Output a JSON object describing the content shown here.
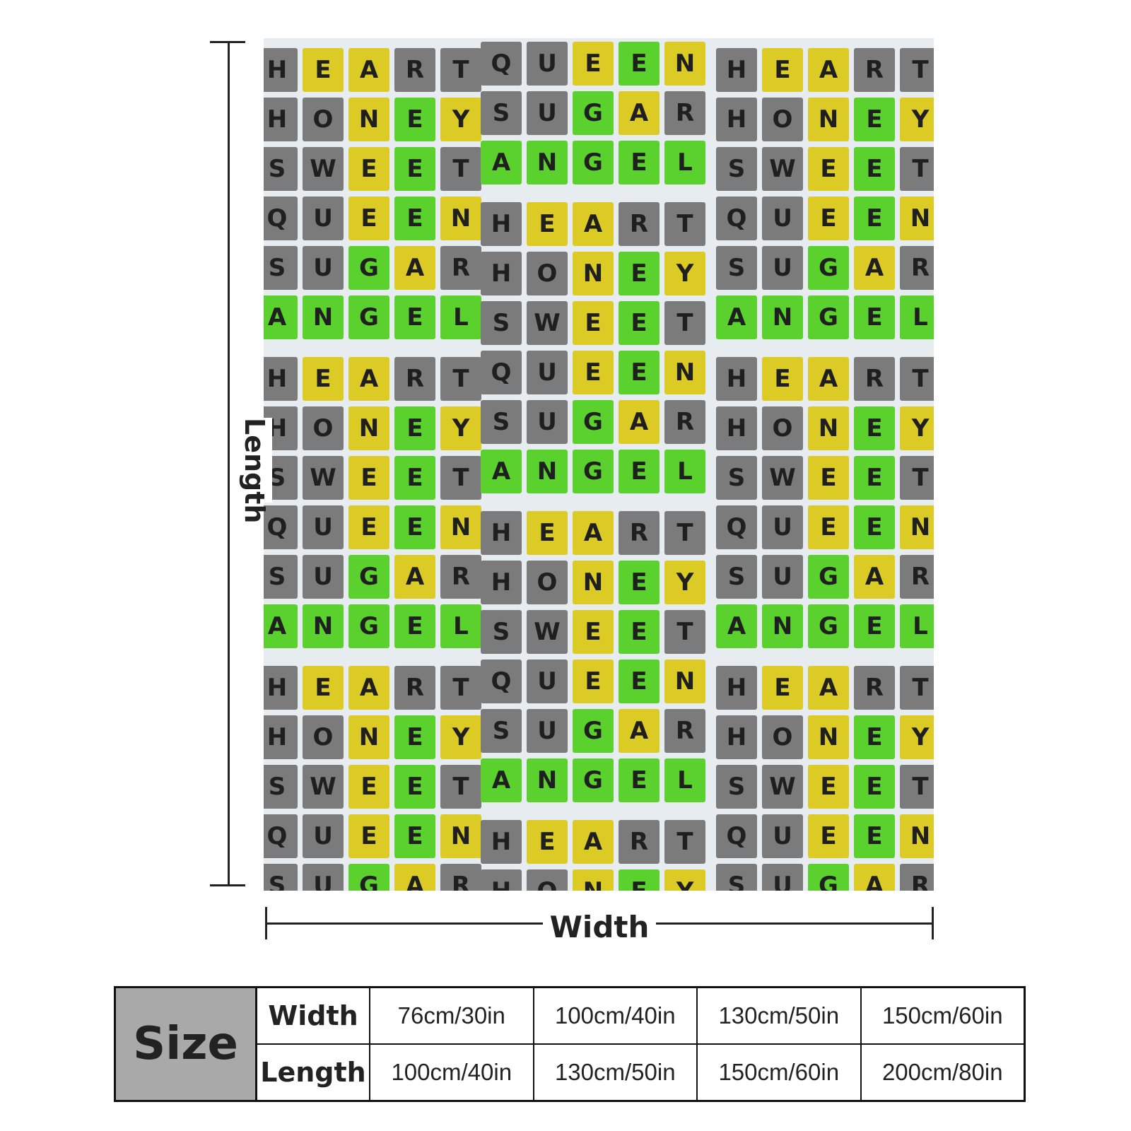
{
  "blanket": {
    "words": [
      "HEART",
      "HONEY",
      "SWEET",
      "QUEEN",
      "SUGAR",
      "ANGEL"
    ],
    "colors": {
      "gray": "#7b7b7b",
      "yellow": "#dccb24",
      "green": "#5bd12e",
      "background": "#e6ecf0"
    },
    "pattern": [
      [
        "gray",
        "yellow",
        "yellow",
        "gray",
        "gray"
      ],
      [
        "gray",
        "gray",
        "yellow",
        "green",
        "yellow"
      ],
      [
        "gray",
        "gray",
        "yellow",
        "green",
        "gray"
      ],
      [
        "gray",
        "gray",
        "yellow",
        "green",
        "yellow"
      ],
      [
        "gray",
        "gray",
        "green",
        "yellow",
        "gray"
      ],
      [
        "green",
        "green",
        "green",
        "green",
        "green"
      ]
    ]
  },
  "dimensions": {
    "length_label": "Length",
    "width_label": "Width"
  },
  "size_table": {
    "header": "Size",
    "rows": [
      {
        "label": "Width",
        "values": [
          "76cm/30in",
          "100cm/40in",
          "130cm/50in",
          "150cm/60in"
        ]
      },
      {
        "label": "Length",
        "values": [
          "100cm/40in",
          "130cm/50in",
          "150cm/60in",
          "200cm/80in"
        ]
      }
    ]
  }
}
